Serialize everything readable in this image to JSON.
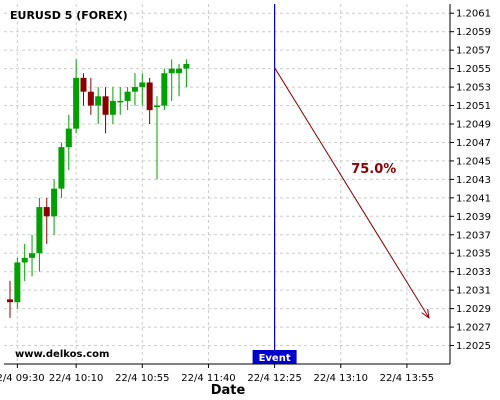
{
  "chart_data": {
    "type": "candlestick",
    "title": "EURUSD 5 (FOREX)",
    "xlabel": "Date",
    "ylabel": "",
    "ylim": [
      1.2023,
      1.2062
    ],
    "y_ticks": [
      "1.2025",
      "1.2027",
      "1.2029",
      "1.2031",
      "1.2033",
      "1.2035",
      "1.2037",
      "1.2039",
      "1.2041",
      "1.2043",
      "1.2045",
      "1.2047",
      "1.2049",
      "1.2051",
      "1.2053",
      "1.2055",
      "1.2057",
      "1.2059",
      "1.2061"
    ],
    "x_ticks": [
      "22/4 09:30",
      "22/4 10:10",
      "22/4 10:55",
      "22/4 11:40",
      "22/4 12:25",
      "22/4 13:10",
      "22/4 13:55"
    ],
    "grid": true,
    "colors": {
      "up": "#00a000",
      "down": "#8b0000",
      "event_line": "#0000cc",
      "projection": "#8b0000"
    },
    "candles": [
      {
        "o": 1.203,
        "h": 1.2032,
        "l": 1.2028,
        "c": 1.20297
      },
      {
        "o": 1.20297,
        "h": 1.20345,
        "l": 1.2029,
        "c": 1.2034
      },
      {
        "o": 1.2034,
        "h": 1.2036,
        "l": 1.2032,
        "c": 1.20345
      },
      {
        "o": 1.20345,
        "h": 1.2037,
        "l": 1.20325,
        "c": 1.2035
      },
      {
        "o": 1.2035,
        "h": 1.2041,
        "l": 1.2033,
        "c": 1.204
      },
      {
        "o": 1.204,
        "h": 1.2041,
        "l": 1.2036,
        "c": 1.2039
      },
      {
        "o": 1.2039,
        "h": 1.2043,
        "l": 1.2037,
        "c": 1.2042
      },
      {
        "o": 1.2042,
        "h": 1.2047,
        "l": 1.2041,
        "c": 1.20465
      },
      {
        "o": 1.20465,
        "h": 1.205,
        "l": 1.2044,
        "c": 1.20485
      },
      {
        "o": 1.20485,
        "h": 1.2056,
        "l": 1.2048,
        "c": 1.2054
      },
      {
        "o": 1.2054,
        "h": 1.20545,
        "l": 1.2051,
        "c": 1.20525
      },
      {
        "o": 1.20525,
        "h": 1.2054,
        "l": 1.205,
        "c": 1.2051
      },
      {
        "o": 1.2051,
        "h": 1.2053,
        "l": 1.2049,
        "c": 1.2052
      },
      {
        "o": 1.2052,
        "h": 1.2053,
        "l": 1.2048,
        "c": 1.205
      },
      {
        "o": 1.205,
        "h": 1.2053,
        "l": 1.2049,
        "c": 1.20515
      },
      {
        "o": 1.20515,
        "h": 1.2053,
        "l": 1.205,
        "c": 1.20515
      },
      {
        "o": 1.20515,
        "h": 1.2053,
        "l": 1.20505,
        "c": 1.20525
      },
      {
        "o": 1.20525,
        "h": 1.20545,
        "l": 1.2051,
        "c": 1.2053
      },
      {
        "o": 1.2053,
        "h": 1.20545,
        "l": 1.2051,
        "c": 1.20535
      },
      {
        "o": 1.20535,
        "h": 1.2054,
        "l": 1.2049,
        "c": 1.20505
      },
      {
        "o": 1.2051,
        "h": 1.2052,
        "l": 1.2043,
        "c": 1.2051
      },
      {
        "o": 1.2051,
        "h": 1.2055,
        "l": 1.20505,
        "c": 1.20545
      },
      {
        "o": 1.20545,
        "h": 1.2056,
        "l": 1.20515,
        "c": 1.2055
      },
      {
        "o": 1.20545,
        "h": 1.20555,
        "l": 1.2052,
        "c": 1.2055
      },
      {
        "o": 1.2055,
        "h": 1.2056,
        "l": 1.2053,
        "c": 1.20555
      }
    ],
    "event": {
      "label": "Event",
      "time": "22/4 12:25"
    },
    "projection": {
      "label": "75.0%",
      "from_time": "22/4 12:25",
      "from_price": 1.20551,
      "to_time": "22/4 14:10",
      "to_price": 1.2028
    },
    "watermark": "www.delkos.com"
  }
}
